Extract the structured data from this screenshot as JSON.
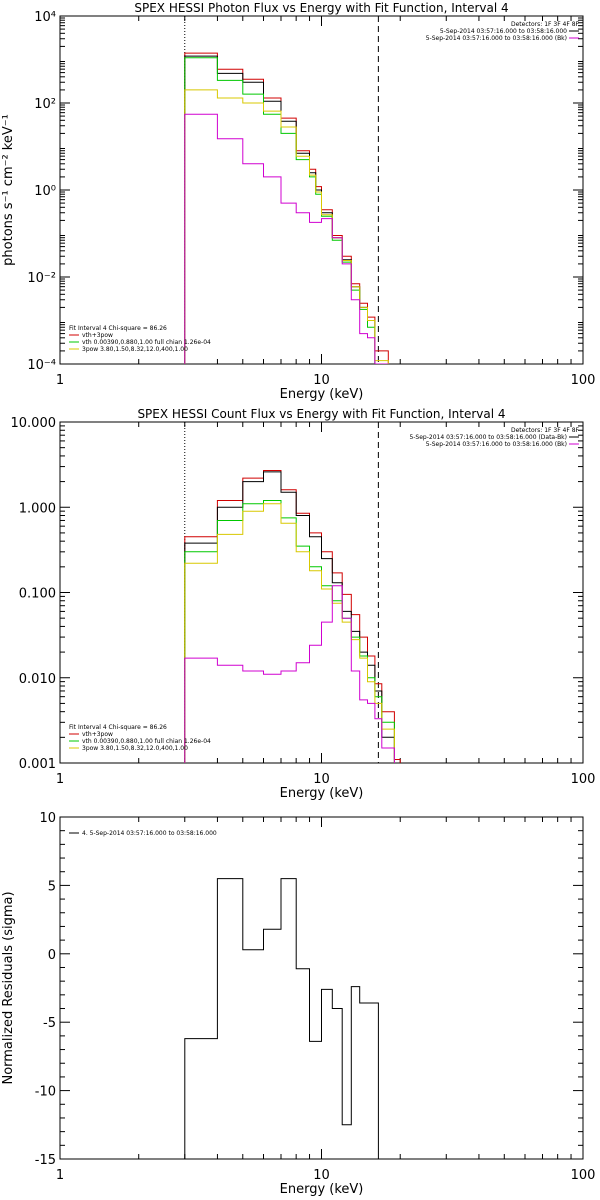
{
  "chart_data": [
    {
      "type": "line",
      "title": "SPEX HESSI Photon Flux vs Energy with Fit Function, Interval 4",
      "xlabel": "Energy (keV)",
      "ylabel": "photons s⁻¹ cm⁻² keV⁻¹",
      "x_scale": "log",
      "y_scale": "log",
      "xlim": [
        1,
        100
      ],
      "ylim": [
        0.0001,
        10000
      ],
      "x_ticks": [
        "1",
        "10",
        "100"
      ],
      "y_ticks": [
        "10⁴",
        "10²",
        "10⁰",
        "10⁻²",
        "10⁻⁴"
      ],
      "y_tick_values": [
        10000,
        100,
        1,
        0.01,
        0.0001
      ],
      "vlines": [
        {
          "x": 3.0,
          "style": "dotted",
          "color": "#000000"
        },
        {
          "x": 16.5,
          "style": "dashed",
          "color": "#000000"
        }
      ],
      "edges": [
        3.0,
        3.5,
        4.0,
        4.5,
        5.0,
        5.5,
        6.0,
        6.5,
        7.0,
        7.5,
        8.0,
        8.5,
        9.0,
        9.5,
        10.0,
        11.0,
        12.0,
        13.0,
        14.0,
        15.0,
        16.0,
        18.0,
        20.0
      ],
      "series": [
        {
          "name": "vth+3pow",
          "color": "#d00000",
          "values": [
            1400,
            1400,
            600,
            600,
            350,
            350,
            130,
            130,
            45,
            45,
            8,
            8,
            3,
            1.2,
            0.35,
            0.09,
            0.03,
            0.007,
            0.0025,
            0.0012,
            0.0002,
            8e-05
          ]
        },
        {
          "name": "",
          "color": "#000000",
          "values": [
            1200,
            1200,
            480,
            480,
            300,
            300,
            110,
            110,
            38,
            38,
            7,
            7,
            2.5,
            1.0,
            0.3,
            0.08,
            0.025,
            0.006,
            0.002,
            0.001,
            0.0001,
            5e-05
          ]
        },
        {
          "name": "vth 0.00390,0.880,1.00  full chian 1.26e-04",
          "color": "#00c800",
          "values": [
            1100,
            1100,
            330,
            330,
            160,
            160,
            55,
            55,
            20,
            20,
            5,
            5,
            2,
            0.8,
            0.25,
            0.07,
            0.022,
            0.005,
            0.0018,
            0.0007,
            0.0001,
            5e-05
          ]
        },
        {
          "name": "3pow 3.80,1.50,8.32,12.0,400,1.00",
          "color": "#d8c800",
          "values": [
            200,
            200,
            130,
            130,
            100,
            100,
            65,
            65,
            28,
            28,
            6,
            6,
            2.2,
            0.9,
            0.27,
            0.08,
            0.024,
            0.006,
            0.002,
            0.001,
            0.00012,
            6e-05
          ]
        },
        {
          "name": "",
          "color": "#d000d0",
          "values": [
            55,
            55,
            15,
            15,
            4,
            4,
            2,
            2,
            0.5,
            0.5,
            0.3,
            0.3,
            0.18,
            0.18,
            0.22,
            0.08,
            0.02,
            0.003,
            0.0005,
            0.0004,
            0.0001,
            5e-05
          ]
        }
      ],
      "legend_topright": {
        "header": "Detectors: 1F 3F 4F 8F",
        "lines": [
          {
            "text": "5-Sep-2014 03:57:16.000 to 03:58:16.000",
            "color": "#000000"
          },
          {
            "text": "5-Sep-2014 03:57:16.000 to 03:58:16.000 (Bk)",
            "color": "#d000d0"
          }
        ]
      },
      "legend_bottomleft": {
        "header": "Fit Interval  4    Chi-square = 86.26",
        "lines": [
          {
            "text": "vth+3pow",
            "color": "#d00000"
          },
          {
            "text": "vth 0.00390,0.880,1.00  full chian 1.26e-04",
            "color": "#00c800"
          },
          {
            "text": "3pow 3.80,1.50,8.32,12.0,400,1.00",
            "color": "#d8c800"
          }
        ]
      }
    },
    {
      "type": "line",
      "title": "SPEX HESSI Count Flux vs Energy with Fit Function, Interval 4",
      "xlabel": "Energy (keV)",
      "ylabel": "",
      "x_scale": "log",
      "y_scale": "log",
      "xlim": [
        1,
        100
      ],
      "ylim": [
        0.001,
        10
      ],
      "x_ticks": [
        "1",
        "10",
        "100"
      ],
      "y_ticks": [
        "10.000",
        "1.000",
        "0.100",
        "0.010",
        "0.001"
      ],
      "y_tick_values": [
        10,
        1,
        0.1,
        0.01,
        0.001
      ],
      "vlines": [
        {
          "x": 3.0,
          "style": "dotted",
          "color": "#000000"
        },
        {
          "x": 16.5,
          "style": "dashed",
          "color": "#000000"
        }
      ],
      "edges": [
        3.0,
        4.0,
        5.0,
        6.0,
        7.0,
        8.0,
        9.0,
        10.0,
        11.0,
        12.0,
        13.0,
        14.0,
        15.0,
        16.0,
        17.0,
        19.0,
        20.0
      ],
      "series": [
        {
          "name": "vth+3pow",
          "color": "#d00000",
          "values": [
            0.45,
            1.2,
            2.2,
            2.7,
            1.6,
            0.85,
            0.5,
            0.3,
            0.17,
            0.095,
            0.055,
            0.03,
            0.018,
            0.0085,
            0.004,
            0.0011
          ]
        },
        {
          "name": "",
          "color": "#000000",
          "values": [
            0.38,
            1.0,
            2.0,
            2.6,
            1.5,
            0.8,
            0.45,
            0.25,
            0.13,
            0.06,
            0.035,
            0.02,
            0.014,
            0.007,
            0.002,
            0.0008
          ]
        },
        {
          "name": "vth 0.00390,0.880,1.00  full chian 1.26e-04",
          "color": "#00c800",
          "values": [
            0.3,
            0.7,
            1.1,
            1.2,
            0.75,
            0.35,
            0.2,
            0.12,
            0.08,
            0.05,
            0.03,
            0.018,
            0.01,
            0.006,
            0.003,
            0.0009
          ]
        },
        {
          "name": "3pow 3.80,1.50,8.32,12.0,400,1.00",
          "color": "#d8c800",
          "values": [
            0.22,
            0.48,
            0.9,
            1.1,
            0.65,
            0.3,
            0.18,
            0.11,
            0.075,
            0.045,
            0.028,
            0.017,
            0.009,
            0.005,
            0.0025,
            0.0008
          ]
        },
        {
          "name": "",
          "color": "#d000d0",
          "values": [
            0.017,
            0.014,
            0.012,
            0.011,
            0.012,
            0.015,
            0.024,
            0.045,
            0.12,
            0.05,
            0.012,
            0.0055,
            0.005,
            0.0033,
            0.0015,
            0.0008
          ]
        }
      ],
      "legend_topright": {
        "header": "Detectors: 1F 3F 4F 8F",
        "lines": [
          {
            "text": "5-Sep-2014 03:57:16.000 to 03:58:16.000 (Data-Bk)",
            "color": "#000000"
          },
          {
            "text": "5-Sep-2014 03:57:16.000 to 03:58:16.000 (Bk)",
            "color": "#d000d0"
          }
        ]
      },
      "legend_bottomleft": {
        "header": "Fit Interval  4    Chi-square = 86.26",
        "lines": [
          {
            "text": "vth+3pow",
            "color": "#d00000"
          },
          {
            "text": "vth 0.00390,0.880,1.00  full chian 1.26e-04",
            "color": "#00c800"
          },
          {
            "text": "3pow 3.80,1.50,8.32,12.0,400,1.00",
            "color": "#d8c800"
          }
        ]
      }
    },
    {
      "type": "line",
      "title": "",
      "xlabel": "Energy (keV)",
      "ylabel": "Normalized Residuals (sigma)",
      "x_scale": "log",
      "y_scale": "linear",
      "xlim": [
        1,
        100
      ],
      "ylim": [
        -15,
        10
      ],
      "x_ticks": [
        "1",
        "10",
        "100"
      ],
      "y_ticks": [
        "10",
        "5",
        "0",
        "-5",
        "-10",
        "-15"
      ],
      "y_tick_values": [
        10,
        5,
        0,
        -5,
        -10,
        -15
      ],
      "edges": [
        3.0,
        4.0,
        5.0,
        6.0,
        7.0,
        8.0,
        9.0,
        10.0,
        11.0,
        12.0,
        13.0,
        14.0,
        15.0,
        16.5
      ],
      "series": [
        {
          "name": "4.  5-Sep-2014 03:57:16.000 to 03:58:16.000",
          "color": "#000000",
          "values": [
            -6.2,
            5.5,
            0.3,
            1.8,
            5.5,
            -1.1,
            -6.4,
            -2.6,
            -4.0,
            -12.5,
            -2.4,
            -3.6,
            -3.6
          ]
        }
      ],
      "legend_topleft": {
        "lines": [
          {
            "text": "4.  5-Sep-2014 03:57:16.000 to 03:58:16.000",
            "color": "#000000"
          }
        ]
      }
    }
  ]
}
